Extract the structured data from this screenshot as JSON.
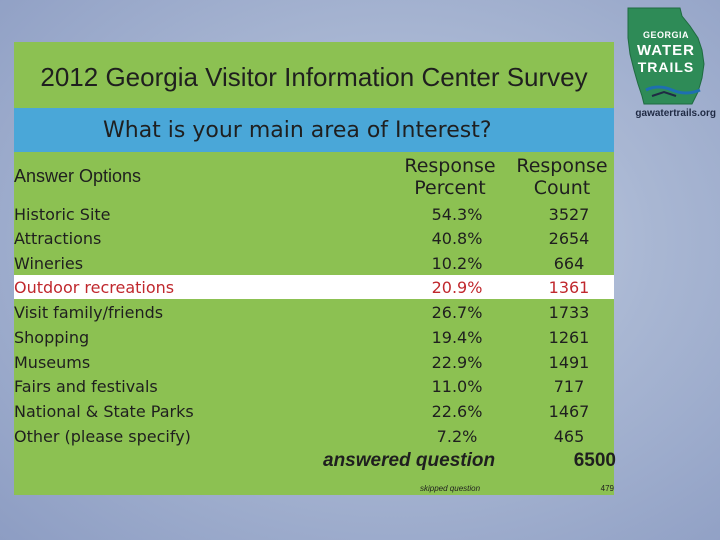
{
  "slide": {
    "title": "2012 Georgia Visitor Information Center Survey",
    "question": "What  is your main area of Interest?"
  },
  "logo": {
    "line1": "GEORGIA",
    "line2": "WATER",
    "line3": "TRAILS",
    "url": "gawatertrails.org",
    "colors": {
      "state_shape": "#2e8b57",
      "water": "#1e6fb0"
    }
  },
  "table": {
    "headers": {
      "answer_options": "Answer Options",
      "response_percent_1": "Response",
      "response_percent_2": "Percent",
      "response_count_1": "Response",
      "response_count_2": "Count"
    },
    "rows": [
      {
        "option": "Historic Site",
        "percent": "54.3%",
        "count": "3527"
      },
      {
        "option": "Attractions",
        "percent": "40.8%",
        "count": "2654"
      },
      {
        "option": "Wineries",
        "percent": "10.2%",
        "count": "664"
      },
      {
        "option": "Outdoor recreations",
        "percent": "20.9%",
        "count": "1361"
      },
      {
        "option": "Visit family/friends",
        "percent": "26.7%",
        "count": "1733"
      },
      {
        "option": "Shopping",
        "percent": "19.4%",
        "count": "1261"
      },
      {
        "option": "Museums",
        "percent": "22.9%",
        "count": "1491"
      },
      {
        "option": "Fairs and festivals",
        "percent": "11.0%",
        "count": "717"
      },
      {
        "option": "National & State Parks",
        "percent": "22.6%",
        "count": "1467"
      },
      {
        "option": "Other (please specify)",
        "percent": "7.2%",
        "count": "465"
      }
    ],
    "highlighted_row_index": 3,
    "answered_label": "answered question",
    "answered_value": "6500",
    "skipped_label": "skipped question",
    "skipped_value": "479"
  },
  "colors": {
    "title_bg": "#8cc152",
    "question_bg": "#4aa7d8",
    "panel_bg": "#8cc152",
    "highlight_bg": "#ffffff",
    "highlight_text": "#c0282d"
  }
}
